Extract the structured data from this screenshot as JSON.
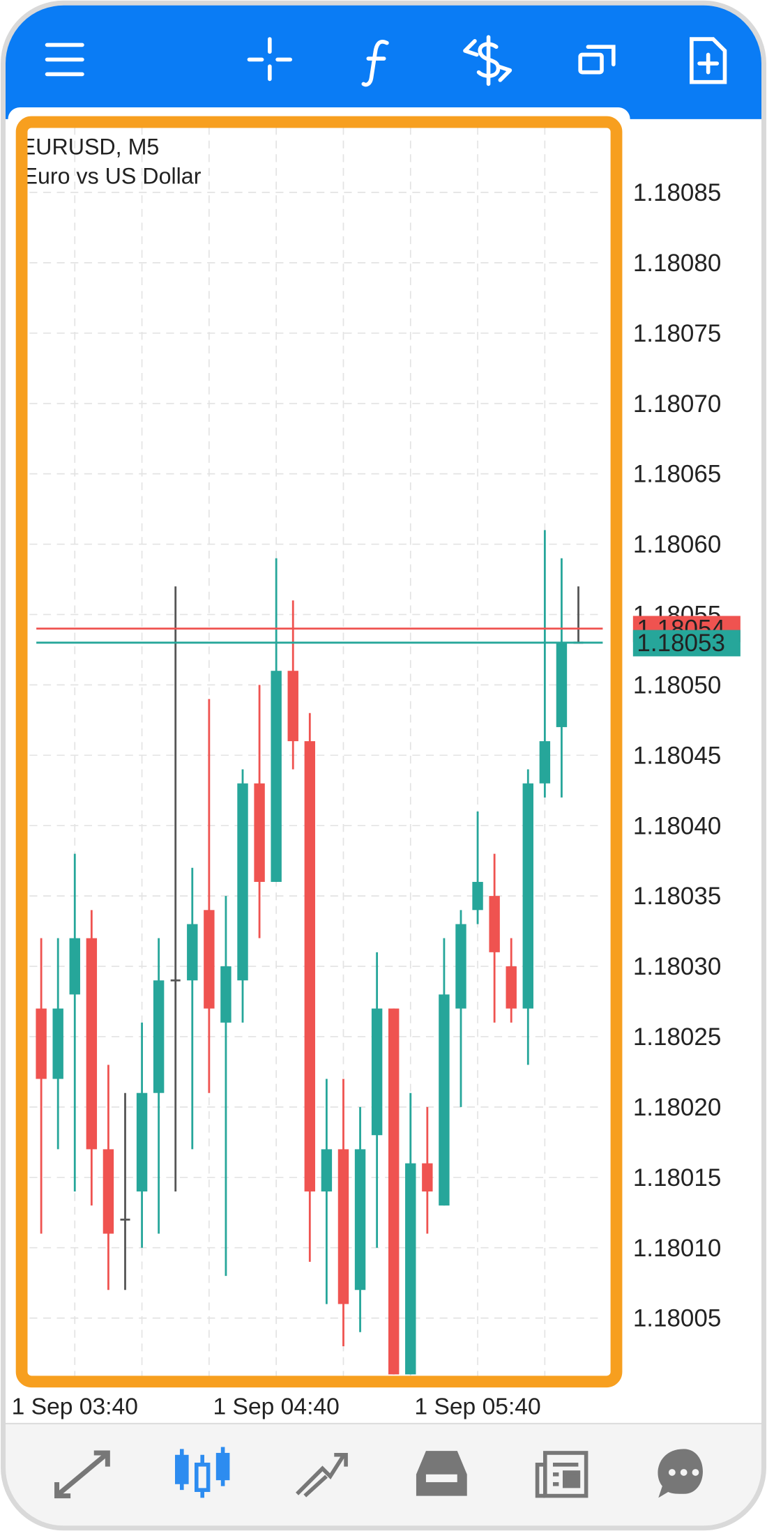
{
  "chart_data": {
    "type": "candlestick",
    "title": "EURUSD, M5",
    "subtitle": "Euro vs US Dollar",
    "categories": [
      null,
      null,
      "1 Sep 03:40",
      null,
      null,
      null,
      null,
      null,
      null,
      null,
      null,
      null,
      null,
      null,
      "1 Sep 04:40",
      null,
      null,
      null,
      null,
      null,
      null,
      null,
      null,
      null,
      null,
      null,
      "1 Sep 05:40",
      null,
      null,
      null,
      null,
      null,
      null
    ],
    "open": [
      1.18027,
      1.18022,
      1.18028,
      1.18032,
      1.18017,
      1.18012,
      1.18014,
      1.18021,
      1.18029,
      1.18029,
      1.18034,
      1.18026,
      1.18029,
      1.18043,
      1.18036,
      1.18051,
      1.18046,
      1.18014,
      1.18017,
      1.18007,
      1.18018,
      1.18027,
      1.18001,
      1.18016,
      1.18013,
      1.18027,
      1.18034,
      1.18035,
      1.1803,
      1.18027,
      1.18043,
      1.18047,
      1.18053
    ],
    "high": [
      1.18032,
      1.18032,
      1.18038,
      1.18034,
      1.18023,
      1.18021,
      1.18026,
      1.18032,
      1.18057,
      1.18037,
      1.18049,
      1.18035,
      1.18044,
      1.1805,
      1.18059,
      1.18056,
      1.18048,
      1.18022,
      1.18022,
      1.1802,
      1.18031,
      1.18027,
      1.18021,
      1.1802,
      1.18032,
      1.18034,
      1.18041,
      1.18038,
      1.18032,
      1.18044,
      1.18061,
      1.18059,
      1.18057
    ],
    "low": [
      1.18011,
      1.18017,
      1.18014,
      1.18013,
      1.18007,
      1.18007,
      1.1801,
      1.18011,
      1.18014,
      1.18017,
      1.18021,
      1.18008,
      1.18026,
      1.18032,
      1.18036,
      1.18044,
      1.18009,
      1.18006,
      1.18003,
      1.18004,
      1.1801,
      1.18001,
      1.18001,
      1.18011,
      1.18013,
      1.1802,
      1.18033,
      1.18026,
      1.18026,
      1.18023,
      1.18042,
      1.18042,
      1.18053
    ],
    "close": [
      1.18022,
      1.18027,
      1.18032,
      1.18017,
      1.18011,
      1.18012,
      1.18021,
      1.18029,
      1.18029,
      1.18033,
      1.18027,
      1.1803,
      1.18043,
      1.18036,
      1.18051,
      1.18046,
      1.18014,
      1.18017,
      1.18006,
      1.18017,
      1.18027,
      1.18001,
      1.18016,
      1.18014,
      1.18028,
      1.18033,
      1.18036,
      1.18031,
      1.18027,
      1.18043,
      1.18046,
      1.18053,
      1.18053
    ],
    "up_color": "#26a69a",
    "down_color": "#ef5350",
    "doji_color": "#555555",
    "ylim": [
      1.18001,
      1.1809
    ],
    "yticks": [
      1.18005,
      {
        "value": 1.1801,
        "label": "1.18010"
      },
      1.18015,
      {
        "value": 1.1802,
        "label": "1.18020"
      },
      1.18025,
      {
        "value": 1.1803,
        "label": "1.18030"
      },
      1.18035,
      {
        "value": 1.1804,
        "label": "1.18040"
      },
      1.18045,
      {
        "value": 1.1805,
        "label": "1.18050"
      },
      1.18055,
      {
        "value": 1.1806,
        "label": "1.18060"
      },
      1.18065,
      {
        "value": 1.1807,
        "label": "1.18070"
      },
      1.18075,
      {
        "value": 1.1808,
        "label": "1.18080"
      },
      1.18085
    ],
    "grid": true,
    "price_lines": [
      {
        "value": 1.18054,
        "color": "#ef5350"
      },
      {
        "value": 1.18053,
        "color": "#26a69a"
      }
    ]
  }
}
